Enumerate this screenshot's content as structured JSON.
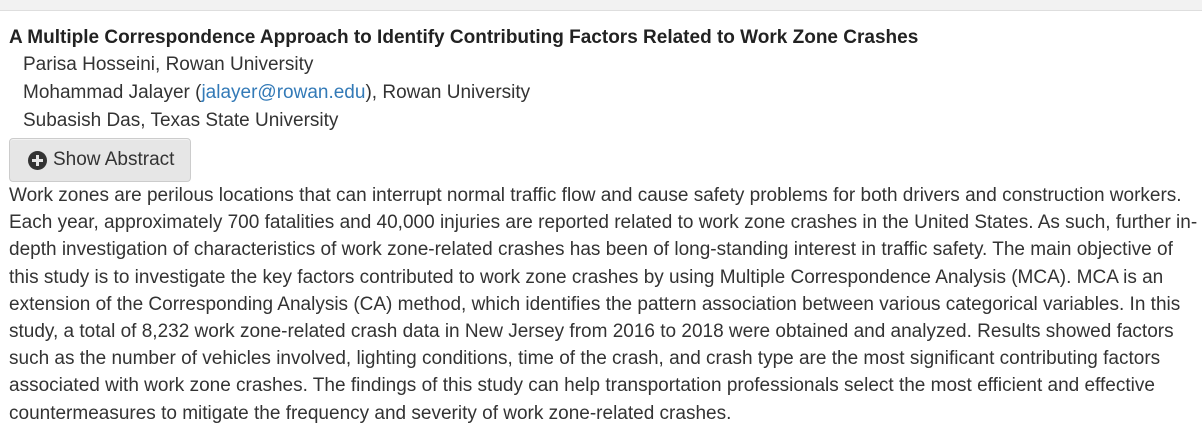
{
  "paper": {
    "title": "A Multiple Correspondence Approach to Identify Contributing Factors Related to Work Zone Crashes",
    "authors": [
      {
        "name": "Parisa Hosseini",
        "affiliation": "Rowan University"
      },
      {
        "name": "Mohammad Jalayer",
        "email": "jalayer@rowan.edu",
        "affiliation": "Rowan University"
      },
      {
        "name": "Subasish Das",
        "affiliation": "Texas State University"
      }
    ],
    "show_abstract_label": "Show Abstract",
    "abstract": "Work zones are perilous locations that can interrupt normal traffic flow and cause safety problems for both drivers and construction workers. Each year, approximately 700 fatalities and 40,000 injuries are reported related to work zone crashes in the United States. As such, further in-depth investigation of characteristics of work zone-related crashes has been of long-standing interest in traffic safety. The main objective of this study is to investigate the key factors contributed to work zone crashes by using Multiple Correspondence Analysis (MCA). MCA is an extension of the Corresponding Analysis (CA) method, which identifies the pattern association between various categorical variables. In this study, a total of 8,232 work zone-related crash data in New Jersey from 2016 to 2018 were obtained and analyzed. Results showed factors such as the number of vehicles involved, lighting conditions, time of the crash, and crash type are the most significant contributing factors associated with work zone crashes. The findings of this study can help transportation professionals select the most efficient and effective countermeasures to mitigate the frequency and severity of work zone-related crashes."
  },
  "colors": {
    "link": "#337ab7",
    "text": "#333333",
    "button_bg": "#e6e6e6"
  },
  "icons": {
    "show_abstract": "plus-circle-icon"
  }
}
